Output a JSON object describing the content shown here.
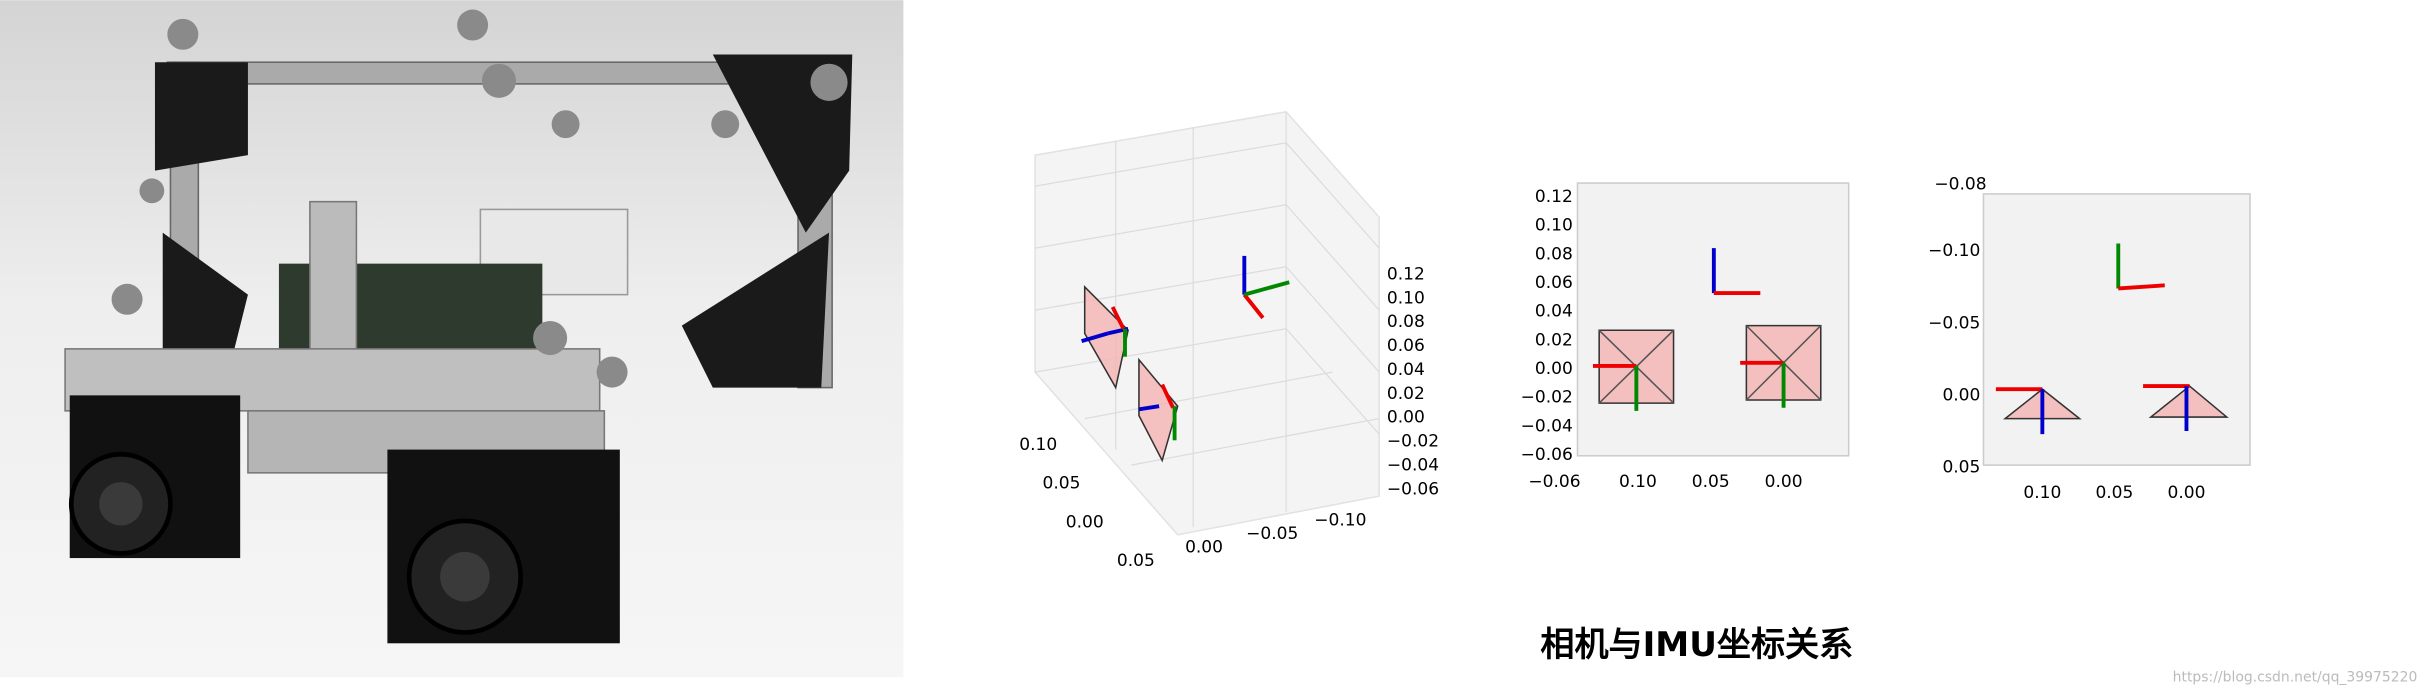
{
  "figure": {
    "plot_3d": {
      "z_ticks": [
        "0.12",
        "0.10",
        "0.08",
        "0.06",
        "0.04",
        "0.02",
        "0.00",
        "−0.02",
        "−0.04",
        "−0.06"
      ],
      "x_ticks": [
        "0.10",
        "0.05",
        "0.00"
      ],
      "y_ticks": [
        "0.05",
        "0.00",
        "−0.05",
        "−0.10"
      ]
    },
    "plot_top": {
      "y_ticks": [
        "0.12",
        "0.10",
        "0.08",
        "0.06",
        "0.04",
        "0.02",
        "0.00",
        "−0.02",
        "−0.04",
        "−0.06"
      ],
      "x_ticks": [
        "0.10",
        "0.05",
        "0.00"
      ],
      "overlap_label": "−0.06"
    },
    "plot_side": {
      "y_ticks": [
        "−0.10",
        "−0.05",
        "0.00",
        "0.05"
      ],
      "x_ticks": [
        "0.10",
        "0.05",
        "0.00"
      ],
      "overlap_label": "−0.08"
    },
    "caption": "相机与IMU坐标关系",
    "watermark": "https://blog.csdn.net/qq_39975220"
  }
}
